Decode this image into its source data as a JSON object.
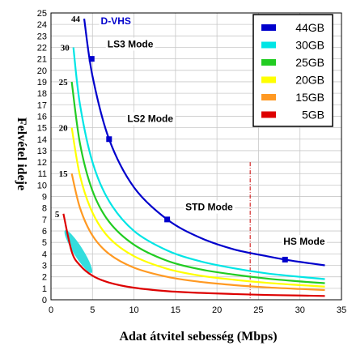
{
  "chart_data": {
    "type": "line",
    "xlabel": "Adat átvitel sebesség (Mbps)",
    "ylabel": "Felvétel ideje",
    "xlim": [
      0,
      35
    ],
    "ylim": [
      0,
      25
    ],
    "xticks": [
      "0",
      "5",
      "10",
      "15",
      "20",
      "25",
      "30",
      "35"
    ],
    "yticks": [
      "0",
      "1",
      "2",
      "3",
      "4",
      "5",
      "6",
      "7",
      "8",
      "9",
      "10",
      "11",
      "12",
      "13",
      "14",
      "15",
      "16",
      "17",
      "18",
      "19",
      "20",
      "21",
      "22",
      "23",
      "24",
      "25"
    ],
    "grid": true,
    "legend_position": "top-right",
    "series": [
      {
        "name": "44GB",
        "color": "#0000cc",
        "capacity_label": "44",
        "x": [
          4.0,
          5.0,
          7.0,
          10.0,
          14.0,
          18.0,
          22.0,
          26.0,
          28.2,
          30.0,
          33.0
        ],
        "y": [
          24.5,
          19.5,
          14.0,
          9.8,
          7.0,
          5.4,
          4.4,
          3.8,
          3.5,
          3.3,
          3.0
        ]
      },
      {
        "name": "30GB",
        "color": "#00e5e5",
        "capacity_label": "30",
        "x": [
          2.7,
          3.5,
          5.0,
          7.0,
          10.0,
          14.0,
          18.0,
          22.0,
          26.0,
          30.0,
          33.0
        ],
        "y": [
          22.0,
          17.0,
          12.0,
          8.6,
          6.0,
          4.3,
          3.35,
          2.75,
          2.3,
          2.0,
          1.8
        ]
      },
      {
        "name": "25GB",
        "color": "#22cc22",
        "capacity_label": "25",
        "x": [
          2.5,
          3.5,
          5.0,
          7.0,
          10.0,
          14.0,
          18.0,
          22.0,
          26.0,
          30.0,
          33.0
        ],
        "y": [
          19.0,
          13.6,
          9.5,
          6.8,
          4.8,
          3.4,
          2.65,
          2.2,
          1.85,
          1.6,
          1.45
        ]
      },
      {
        "name": "20GB",
        "color": "#ffff00",
        "capacity_label": "20",
        "x": [
          2.5,
          3.5,
          5.0,
          7.0,
          10.0,
          14.0,
          18.0,
          22.0,
          26.0,
          30.0,
          33.0
        ],
        "y": [
          15.0,
          10.8,
          7.6,
          5.4,
          3.8,
          2.7,
          2.1,
          1.75,
          1.48,
          1.28,
          1.15
        ]
      },
      {
        "name": "15GB",
        "color": "#ff9922",
        "capacity_label": "15",
        "x": [
          2.5,
          3.5,
          5.0,
          7.0,
          10.0,
          14.0,
          18.0,
          22.0,
          26.0,
          30.0,
          33.0
        ],
        "y": [
          11.0,
          8.0,
          5.6,
          4.0,
          2.8,
          2.0,
          1.56,
          1.28,
          1.08,
          0.94,
          0.85
        ]
      },
      {
        "name": "5GB",
        "color": "#dd0000",
        "capacity_label": "5",
        "x": [
          1.5,
          2.5,
          3.5,
          5.0,
          7.0,
          10.0,
          14.0,
          18.0,
          22.0,
          26.0,
          30.0,
          33.0
        ],
        "y": [
          7.5,
          4.2,
          3.0,
          2.1,
          1.5,
          1.05,
          0.75,
          0.6,
          0.5,
          0.42,
          0.37,
          0.33
        ]
      }
    ],
    "markers": [
      {
        "series": "44GB",
        "x": 4.9,
        "y": 21.0
      },
      {
        "series": "44GB",
        "x": 7.0,
        "y": 14.0
      },
      {
        "series": "44GB",
        "x": 14.0,
        "y": 7.0
      },
      {
        "series": "44GB",
        "x": 28.2,
        "y": 3.5
      }
    ],
    "annotations": [
      {
        "text": "D-VHS",
        "x": 6.0,
        "y": 24.0
      },
      {
        "text": "LS3 Mode",
        "x": 6.8,
        "y": 22.0
      },
      {
        "text": "LS2 Mode",
        "x": 9.2,
        "y": 15.5
      },
      {
        "text": "STD Mode",
        "x": 16.2,
        "y": 7.8
      },
      {
        "text": "HS Mode",
        "x": 28.0,
        "y": 4.8
      }
    ],
    "dvhs_region_color": "#33dddd",
    "reference_line_x": 24.0
  }
}
